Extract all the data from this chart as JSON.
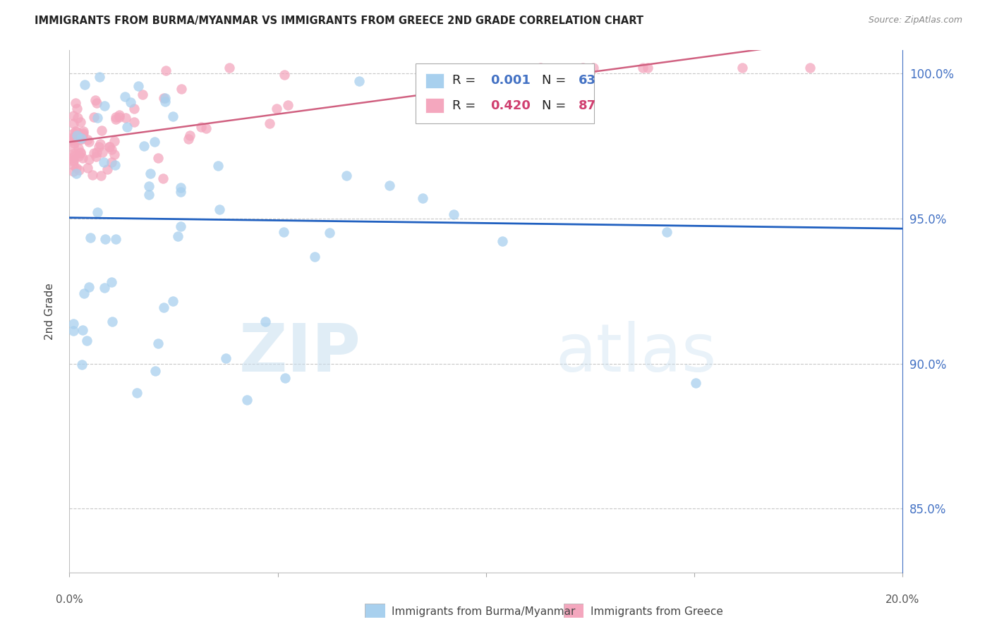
{
  "title": "IMMIGRANTS FROM BURMA/MYANMAR VS IMMIGRANTS FROM GREECE 2ND GRADE CORRELATION CHART",
  "source": "Source: ZipAtlas.com",
  "ylabel": "2nd Grade",
  "legend_label_1": "Immigrants from Burma/Myanmar",
  "legend_label_2": "Immigrants from Greece",
  "blue_color": "#a8d0ee",
  "pink_color": "#f4a7be",
  "line_blue": "#2060c0",
  "line_pink": "#d06080",
  "watermark_zip": "ZIP",
  "watermark_atlas": "atlas",
  "R1": 0.001,
  "R2": 0.42,
  "N1": 63,
  "N2": 87,
  "xlim": [
    0.0,
    0.2
  ],
  "ylim": [
    0.828,
    1.008
  ],
  "blue_hline_y": 0.9705,
  "ytick_vals": [
    0.85,
    0.9,
    0.95,
    1.0
  ],
  "ytick_labels": [
    "85.0%",
    "90.0%",
    "95.0%",
    "100.0%"
  ]
}
